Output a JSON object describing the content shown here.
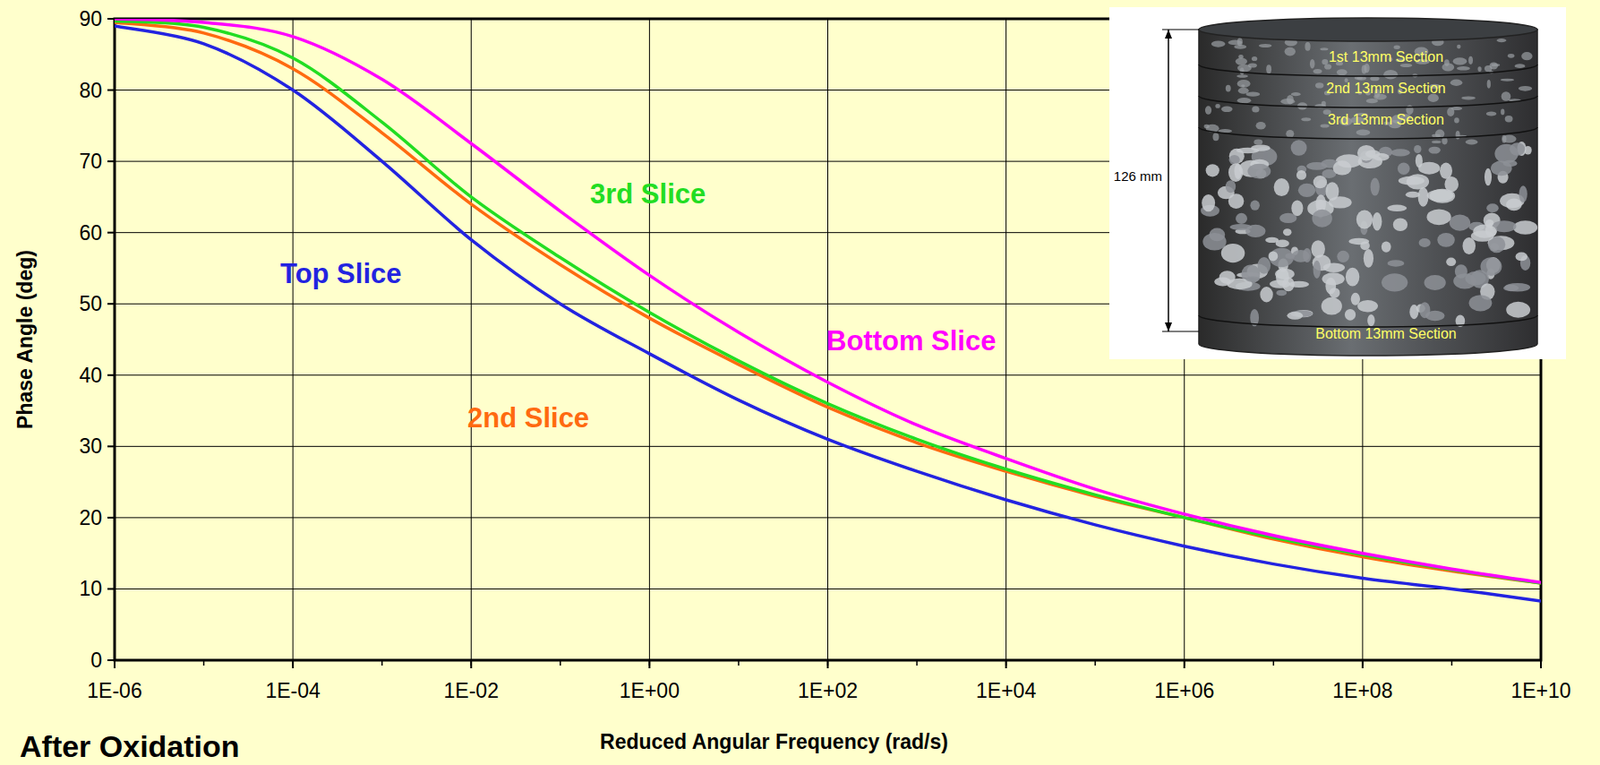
{
  "chart_data": {
    "type": "line",
    "title": "After Oxidation",
    "x_label": "Reduced Angular Frequency (rad/s)",
    "y_label": "Phase Angle (deg)",
    "log": "x",
    "grid": true,
    "xlim": [
      1e-06,
      10000000000.0
    ],
    "ylim": [
      0,
      90
    ],
    "xticks": [
      {
        "value": 1e-06,
        "label": "1E-06"
      },
      {
        "value": 0.0001,
        "label": "1E-04"
      },
      {
        "value": 0.01,
        "label": "1E-02"
      },
      {
        "value": 1,
        "label": "1E+00"
      },
      {
        "value": 100.0,
        "label": "1E+02"
      },
      {
        "value": 10000.0,
        "label": "1E+04"
      },
      {
        "value": 1000000.0,
        "label": "1E+06"
      },
      {
        "value": 100000000.0,
        "label": "1E+08"
      },
      {
        "value": 10000000000.0,
        "label": "1E+10"
      }
    ],
    "yticks": [
      0,
      10,
      20,
      30,
      40,
      50,
      60,
      70,
      80,
      90
    ],
    "x": [
      1e-06,
      1e-05,
      0.0001,
      0.001,
      0.01,
      0.1,
      1,
      10,
      100,
      1000,
      10000.0,
      100000.0,
      1000000.0,
      10000000.0,
      100000000.0,
      1000000000.0,
      10000000000.0
    ],
    "series": [
      {
        "name": "Top Slice",
        "color": "#2323e0",
        "values": [
          89,
          86.5,
          80,
          70,
          59,
          50,
          43,
          36.5,
          31,
          26.5,
          22.5,
          19,
          16,
          13.5,
          11.5,
          10,
          8.3
        ]
      },
      {
        "name": "2nd Slice",
        "color": "#ff6a10",
        "values": [
          89.5,
          88,
          83,
          74,
          64,
          55.5,
          48,
          41.5,
          35.5,
          30.5,
          26.5,
          23,
          20,
          17,
          14.5,
          12.5,
          10.8
        ]
      },
      {
        "name": "3rd Slice",
        "color": "#22dd22",
        "values": [
          89.7,
          88.8,
          84.5,
          75.5,
          65,
          56.5,
          48.8,
          42,
          36,
          31,
          26.8,
          23.2,
          20,
          17.2,
          14.8,
          12.7,
          10.8
        ]
      },
      {
        "name": "Bottom Slice",
        "color": "#ff00ff",
        "values": [
          90,
          89.5,
          87.5,
          81.5,
          72.5,
          63,
          54,
          46,
          39,
          33,
          28.3,
          24,
          20.5,
          17.5,
          15,
          12.8,
          10.9
        ]
      }
    ],
    "annotations": [
      "126 mm",
      "1st 13mm Section",
      "2nd 13mm Section",
      "3rd 13mm Section",
      "Bottom 13mm Section"
    ]
  }
}
